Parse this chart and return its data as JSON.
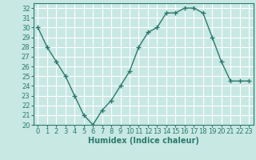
{
  "x": [
    0,
    1,
    2,
    3,
    4,
    5,
    6,
    7,
    8,
    9,
    10,
    11,
    12,
    13,
    14,
    15,
    16,
    17,
    18,
    19,
    20,
    21,
    22,
    23
  ],
  "y": [
    30,
    28,
    26.5,
    25,
    23,
    21,
    20,
    21.5,
    22.5,
    24,
    25.5,
    28,
    29.5,
    30,
    31.5,
    31.5,
    32,
    32,
    31.5,
    29,
    26.5,
    24.5,
    24.5,
    24.5
  ],
  "line_color": "#2d7a6e",
  "bg_color": "#c8e8e4",
  "grid_color": "#b0d8d4",
  "xlabel": "Humidex (Indice chaleur)",
  "xlim": [
    -0.5,
    23.5
  ],
  "ylim": [
    20,
    32.5
  ],
  "yticks": [
    20,
    21,
    22,
    23,
    24,
    25,
    26,
    27,
    28,
    29,
    30,
    31,
    32
  ],
  "xticks": [
    0,
    1,
    2,
    3,
    4,
    5,
    6,
    7,
    8,
    9,
    10,
    11,
    12,
    13,
    14,
    15,
    16,
    17,
    18,
    19,
    20,
    21,
    22,
    23
  ],
  "marker": "+",
  "linewidth": 1.0,
  "markersize": 4,
  "markeredgewidth": 1.0,
  "xlabel_fontsize": 7,
  "tick_fontsize": 6
}
